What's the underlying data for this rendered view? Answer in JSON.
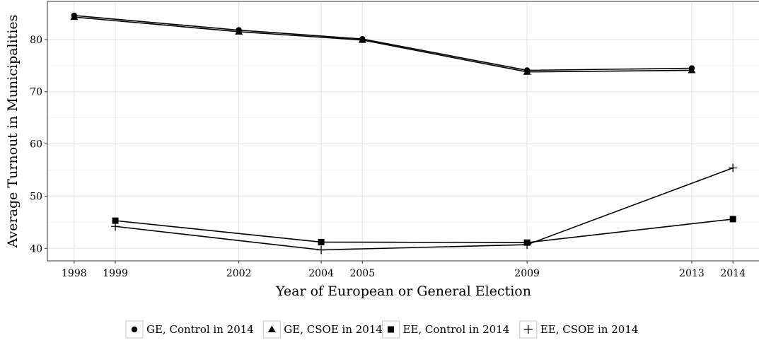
{
  "chart_data": {
    "type": "line",
    "xlabel": "Year of European or General Election",
    "ylabel": "Average Turnout in Municipalities",
    "x_ticks": [
      1998,
      1999,
      2002,
      2004,
      2005,
      2009,
      2013,
      2014
    ],
    "y_ticks": [
      40,
      50,
      60,
      70,
      80
    ],
    "xlim": [
      1997.35,
      2014.65
    ],
    "ylim": [
      37.6,
      87.3
    ],
    "grid": true,
    "legend_position": "bottom",
    "series": [
      {
        "name": "GE, Control in 2014",
        "marker": "circle",
        "x": [
          1998,
          2002,
          2005,
          2009,
          2013
        ],
        "y": [
          84.6,
          81.8,
          80.1,
          74.1,
          74.5
        ]
      },
      {
        "name": "GE, CSOE in 2014",
        "marker": "triangle",
        "x": [
          1998,
          2002,
          2005,
          2009,
          2013
        ],
        "y": [
          84.3,
          81.5,
          79.9,
          73.8,
          74.1
        ]
      },
      {
        "name": "EE, Control in 2014",
        "marker": "square",
        "x": [
          1999,
          2004,
          2009,
          2014
        ],
        "y": [
          45.3,
          41.2,
          41.1,
          45.6
        ]
      },
      {
        "name": "EE, CSOE in 2014",
        "marker": "plus",
        "x": [
          1999,
          2004,
          2009,
          2014
        ],
        "y": [
          44.2,
          39.7,
          40.7,
          55.4
        ]
      }
    ]
  }
}
